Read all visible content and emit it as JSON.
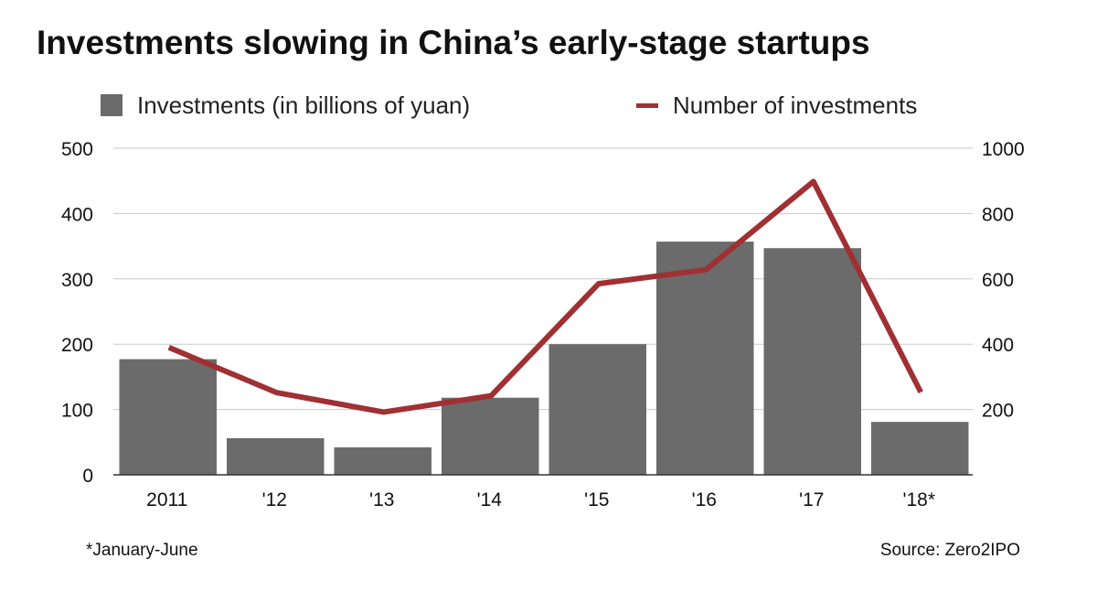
{
  "colors": {
    "bar": "#6b6b6b",
    "line": "#a03033",
    "grid": "#c9c9c9",
    "axis": "#333333",
    "text": "#111111"
  },
  "chart_data": {
    "type": "bar+line",
    "title": "Investments slowing in China’s early-stage startups",
    "categories": [
      "2011",
      "'12",
      "'13",
      "'14",
      "'15",
      "'16",
      "'17",
      "'18*"
    ],
    "series": [
      {
        "name": "Investments (in billions of yuan)",
        "type": "bar",
        "axis": "left",
        "values": [
          177,
          56,
          42,
          118,
          200,
          357,
          347,
          81
        ]
      },
      {
        "name": "Number of investments",
        "type": "line",
        "axis": "right",
        "values": [
          390,
          252,
          192,
          242,
          585,
          628,
          898,
          253
        ]
      }
    ],
    "y_left": {
      "min": 0,
      "max": 500,
      "ticks": [
        "0",
        "100",
        "200",
        "300",
        "400",
        "500"
      ]
    },
    "y_right": {
      "min": 0,
      "max": 1000,
      "ticks": [
        "200",
        "400",
        "600",
        "800",
        "1000"
      ]
    },
    "grid": true,
    "legend_position": "top",
    "footnote": "*January-June",
    "source": "Source: Zero2IPO"
  }
}
